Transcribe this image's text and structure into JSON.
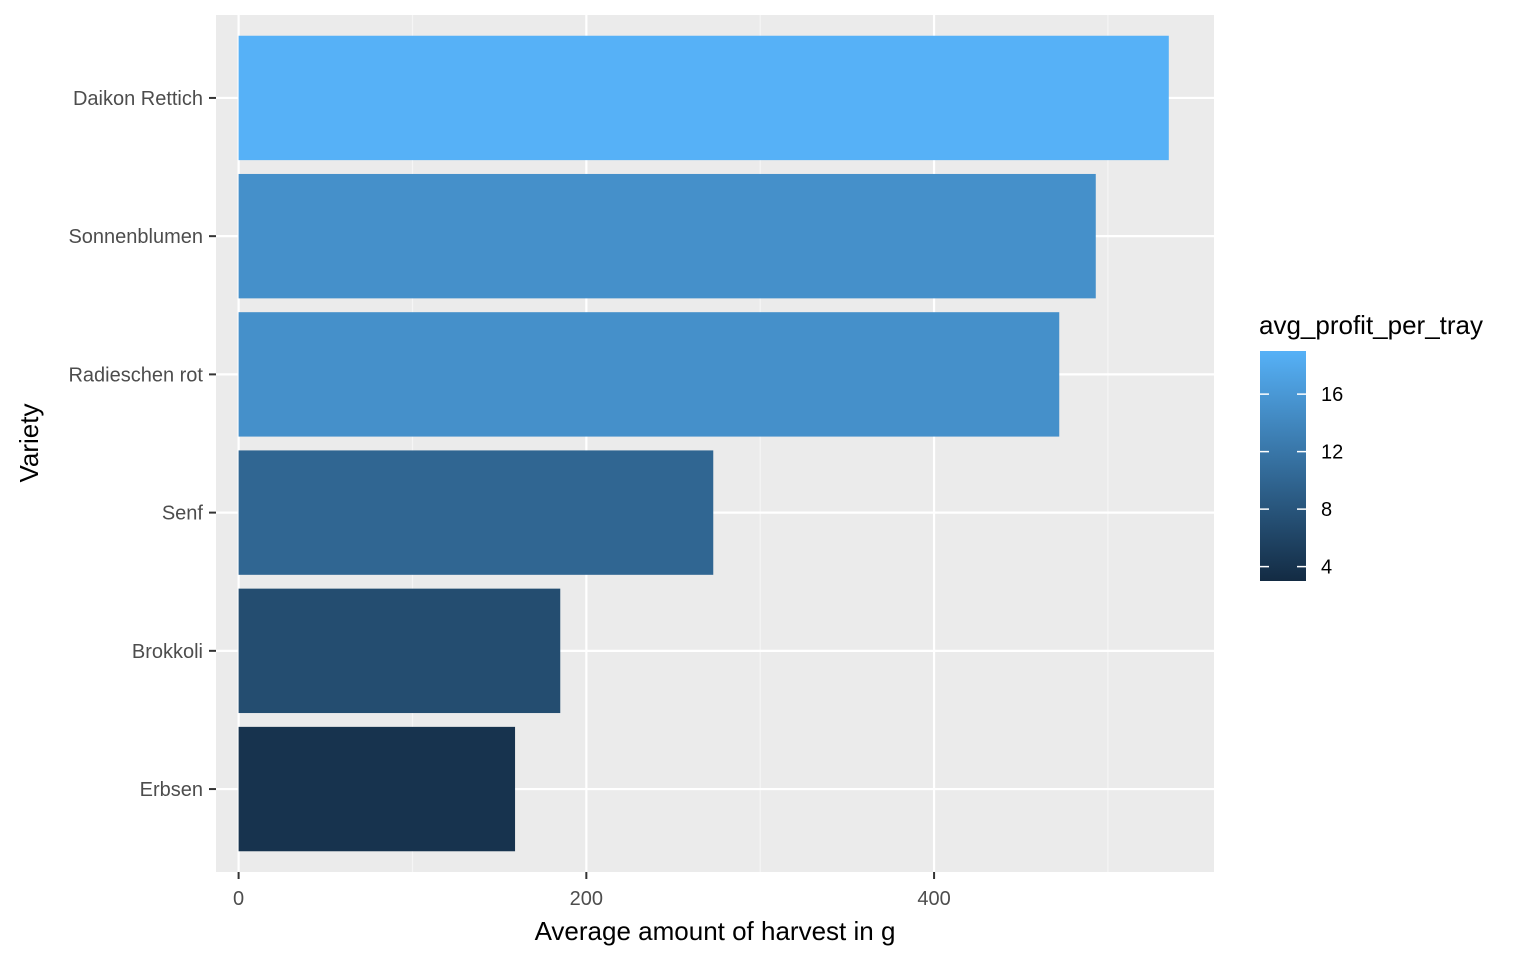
{
  "chart_data": {
    "type": "bar",
    "orientation": "horizontal",
    "title": "",
    "xlabel": "Average amount of harvest in g",
    "ylabel": "Variety",
    "categories": [
      "Daikon Rettich",
      "Sonnenblumen",
      "Radieschen rot",
      "Senf",
      "Brokkoli",
      "Erbsen"
    ],
    "values": [
      535,
      493,
      472,
      273,
      185,
      159
    ],
    "fill_values": [
      19,
      15,
      15,
      10,
      7,
      4
    ],
    "xlim": [
      -13,
      561
    ],
    "x_ticks": [
      0,
      200,
      400
    ],
    "x_tick_labels": [
      "0",
      "200",
      "400"
    ],
    "grid": true,
    "legend": {
      "title": "avg_profit_per_tray",
      "placement": "right",
      "range": [
        3,
        19
      ],
      "ticks": [
        4,
        8,
        12,
        16
      ],
      "tick_labels": [
        "4",
        "8",
        "12",
        "16"
      ],
      "color_low": "#132B43",
      "color_high": "#56B1F7"
    },
    "colors": {
      "panel_background": "#EBEBEB",
      "grid_major": "#FFFFFF",
      "grid_minor": "#F5F5F5"
    }
  }
}
